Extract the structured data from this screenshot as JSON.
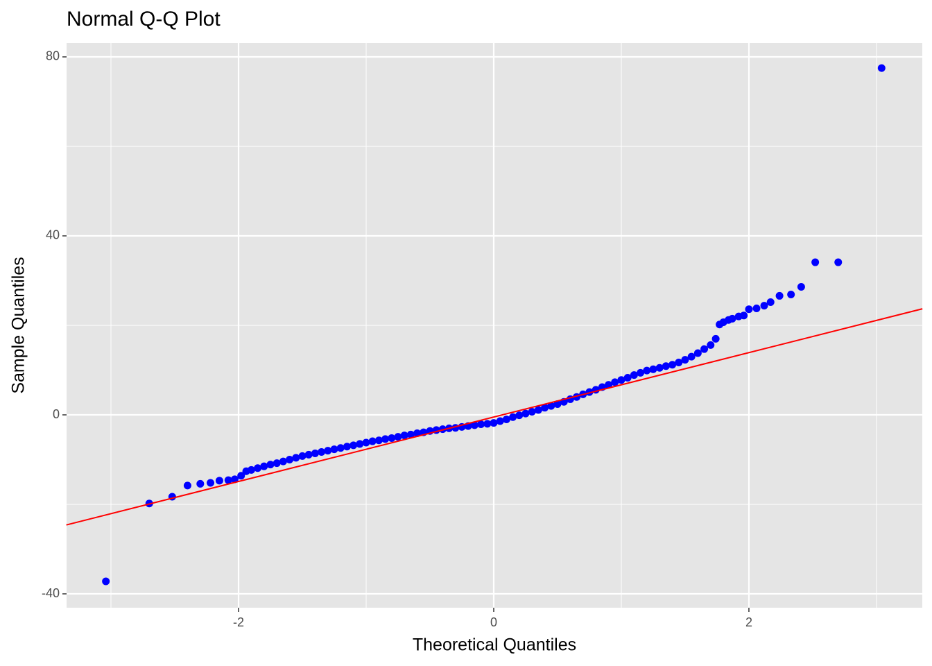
{
  "chart_data": {
    "type": "scatter",
    "title": "Normal Q-Q Plot",
    "x_label": "Theoretical Quantiles",
    "y_label": "Sample Quantiles",
    "color": "blue",
    "x": [
      -3.04,
      -2.7,
      -2.52,
      -2.4,
      -2.3,
      -2.22,
      -2.15,
      -2.08,
      -2.03,
      -1.98,
      -1.94,
      -1.9,
      -1.85,
      -1.8,
      -1.75,
      -1.7,
      -1.65,
      -1.6,
      -1.55,
      -1.5,
      -1.45,
      -1.4,
      -1.35,
      -1.3,
      -1.25,
      -1.2,
      -1.15,
      -1.1,
      -1.05,
      -1.0,
      -0.95,
      -0.9,
      -0.85,
      -0.8,
      -0.75,
      -0.7,
      -0.65,
      -0.6,
      -0.55,
      -0.5,
      -0.45,
      -0.4,
      -0.35,
      -0.3,
      -0.25,
      -0.2,
      -0.15,
      -0.1,
      -0.05,
      0,
      0.05,
      0.1,
      0.15,
      0.2,
      0.25,
      0.3,
      0.35,
      0.4,
      0.45,
      0.5,
      0.55,
      0.6,
      0.65,
      0.7,
      0.75,
      0.8,
      0.85,
      0.9,
      0.95,
      1.0,
      1.05,
      1.1,
      1.15,
      1.2,
      1.25,
      1.3,
      1.35,
      1.4,
      1.45,
      1.5,
      1.55,
      1.6,
      1.65,
      1.7,
      1.74,
      1.77,
      1.8,
      1.84,
      1.87,
      1.92,
      1.96,
      2.0,
      2.06,
      2.12,
      2.17,
      2.24,
      2.33,
      2.41,
      2.52,
      2.7,
      3.04
    ],
    "values": [
      -37.2,
      -19.8,
      -18.3,
      -15.8,
      -15.4,
      -15.2,
      -14.7,
      -14.6,
      -14.4,
      -13.6,
      -12.6,
      -12.3,
      -11.9,
      -11.5,
      -11.1,
      -10.8,
      -10.4,
      -10.0,
      -9.6,
      -9.2,
      -8.9,
      -8.6,
      -8.3,
      -8.0,
      -7.7,
      -7.4,
      -7.1,
      -6.8,
      -6.5,
      -6.2,
      -5.9,
      -5.7,
      -5.4,
      -5.2,
      -4.9,
      -4.6,
      -4.4,
      -4.1,
      -3.9,
      -3.6,
      -3.4,
      -3.2,
      -3.0,
      -2.9,
      -2.7,
      -2.5,
      -2.3,
      -2.1,
      -2.0,
      -1.8,
      -1.4,
      -1.0,
      -0.5,
      -0.1,
      0.3,
      0.7,
      1.1,
      1.6,
      2.0,
      2.4,
      2.9,
      3.5,
      4.0,
      4.6,
      5.1,
      5.6,
      6.2,
      6.7,
      7.3,
      7.8,
      8.3,
      8.9,
      9.4,
      9.9,
      10.2,
      10.5,
      10.9,
      11.2,
      11.7,
      12.3,
      13.0,
      13.8,
      14.7,
      15.6,
      17.0,
      20.2,
      20.7,
      21.2,
      21.5,
      22.0,
      22.2,
      23.6,
      23.8,
      24.4,
      25.2,
      26.6,
      26.9,
      28.6,
      34.1,
      34.1,
      77.5
    ],
    "reference_line": {
      "x": [
        -3.35,
        3.36
      ],
      "values": [
        -24.6,
        23.7
      ],
      "color": "red"
    },
    "xlim": [
      -3.348,
      3.359
    ],
    "ylim": [
      -43.1,
      83.1
    ],
    "xticks": [
      -2,
      0,
      2
    ],
    "yticks": [
      -40,
      0,
      40,
      80
    ],
    "x_minor_grid": [
      -3,
      -1,
      1,
      3
    ],
    "y_minor_grid": [
      -20,
      20,
      60
    ],
    "grid": true
  }
}
